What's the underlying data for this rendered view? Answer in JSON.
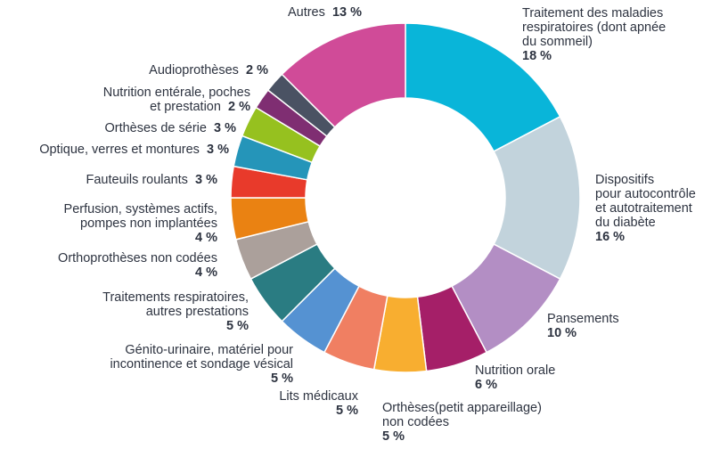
{
  "chart_data": {
    "type": "pie",
    "style": "donut",
    "title": "",
    "slices": [
      {
        "label": "Traitement des maladies respiratoires (dont apnée du sommeil)",
        "lines": [
          "Traitement des maladies",
          "respiratoires (dont apnée",
          "du sommeil)"
        ],
        "value": 18,
        "display": "18 %",
        "color": "#09b5d9"
      },
      {
        "label": "Dispositifs pour autocontrôle et autotraitement du diabète",
        "lines": [
          "Dispositifs",
          "pour autocontrôle",
          "et autotraitement",
          "du diabète"
        ],
        "value": 16,
        "display": "16 %",
        "color": "#c2d3dc"
      },
      {
        "label": "Pansements",
        "lines": [
          "Pansements"
        ],
        "value": 10,
        "display": "10 %",
        "color": "#b38ec4"
      },
      {
        "label": "Nutrition orale",
        "lines": [
          "Nutrition orale"
        ],
        "value": 6,
        "display": "6 %",
        "color": "#a51f68"
      },
      {
        "label": "Orthèses(petit appareillage) non codées",
        "lines": [
          "Orthèses(petit appareillage)",
          "non codées"
        ],
        "value": 5,
        "display": "5 %",
        "color": "#f8ae30"
      },
      {
        "label": "Lits médicaux",
        "lines": [
          "Lits médicaux"
        ],
        "value": 5,
        "display": "5 %",
        "color": "#f07f62"
      },
      {
        "label": "Génito-urinaire, matériel pour incontinence et sondage vésical",
        "lines": [
          "Génito-urinaire, matériel pour",
          "incontinence et sondage vésical"
        ],
        "value": 5,
        "display": "5 %",
        "color": "#5592d2"
      },
      {
        "label": "Traitements respiratoires, autres prestations",
        "lines": [
          "Traitements respiratoires,",
          "autres prestations"
        ],
        "value": 5,
        "display": "5 %",
        "color": "#2a7c82"
      },
      {
        "label": "Orthoprothèses non codées",
        "lines": [
          "Orthoprothèses non codées"
        ],
        "value": 4,
        "display": "4 %",
        "color": "#aba09b"
      },
      {
        "label": "Perfusion, systèmes actifs, pompes non implantées",
        "lines": [
          "Perfusion, systèmes actifs,",
          "pompes non implantées"
        ],
        "value": 4,
        "display": "4 %",
        "color": "#ea8212"
      },
      {
        "label": "Fauteuils roulants",
        "lines": [
          "Fauteuils roulants"
        ],
        "value": 3,
        "display": "3 %",
        "color": "#e83a2b"
      },
      {
        "label": "Optique, verres et montures",
        "lines": [
          "Optique, verres et montures"
        ],
        "value": 3,
        "display": "3 %",
        "color": "#2595b9"
      },
      {
        "label": "Orthèses de série",
        "lines": [
          "Orthèses de série"
        ],
        "value": 3,
        "display": "3 %",
        "color": "#96c11f"
      },
      {
        "label": "Nutrition entérale, poches et prestation",
        "lines": [
          "Nutrition entérale, poches",
          "et prestation"
        ],
        "value": 2,
        "display": "2 %",
        "color": "#7f2e72"
      },
      {
        "label": "Audioprothèses",
        "lines": [
          "Audioprothèses"
        ],
        "value": 2,
        "display": "2 %",
        "color": "#4a5263"
      },
      {
        "label": "Autres",
        "lines": [
          "Autres"
        ],
        "value": 13,
        "display": "13 %",
        "color": "#d04b98"
      }
    ]
  }
}
